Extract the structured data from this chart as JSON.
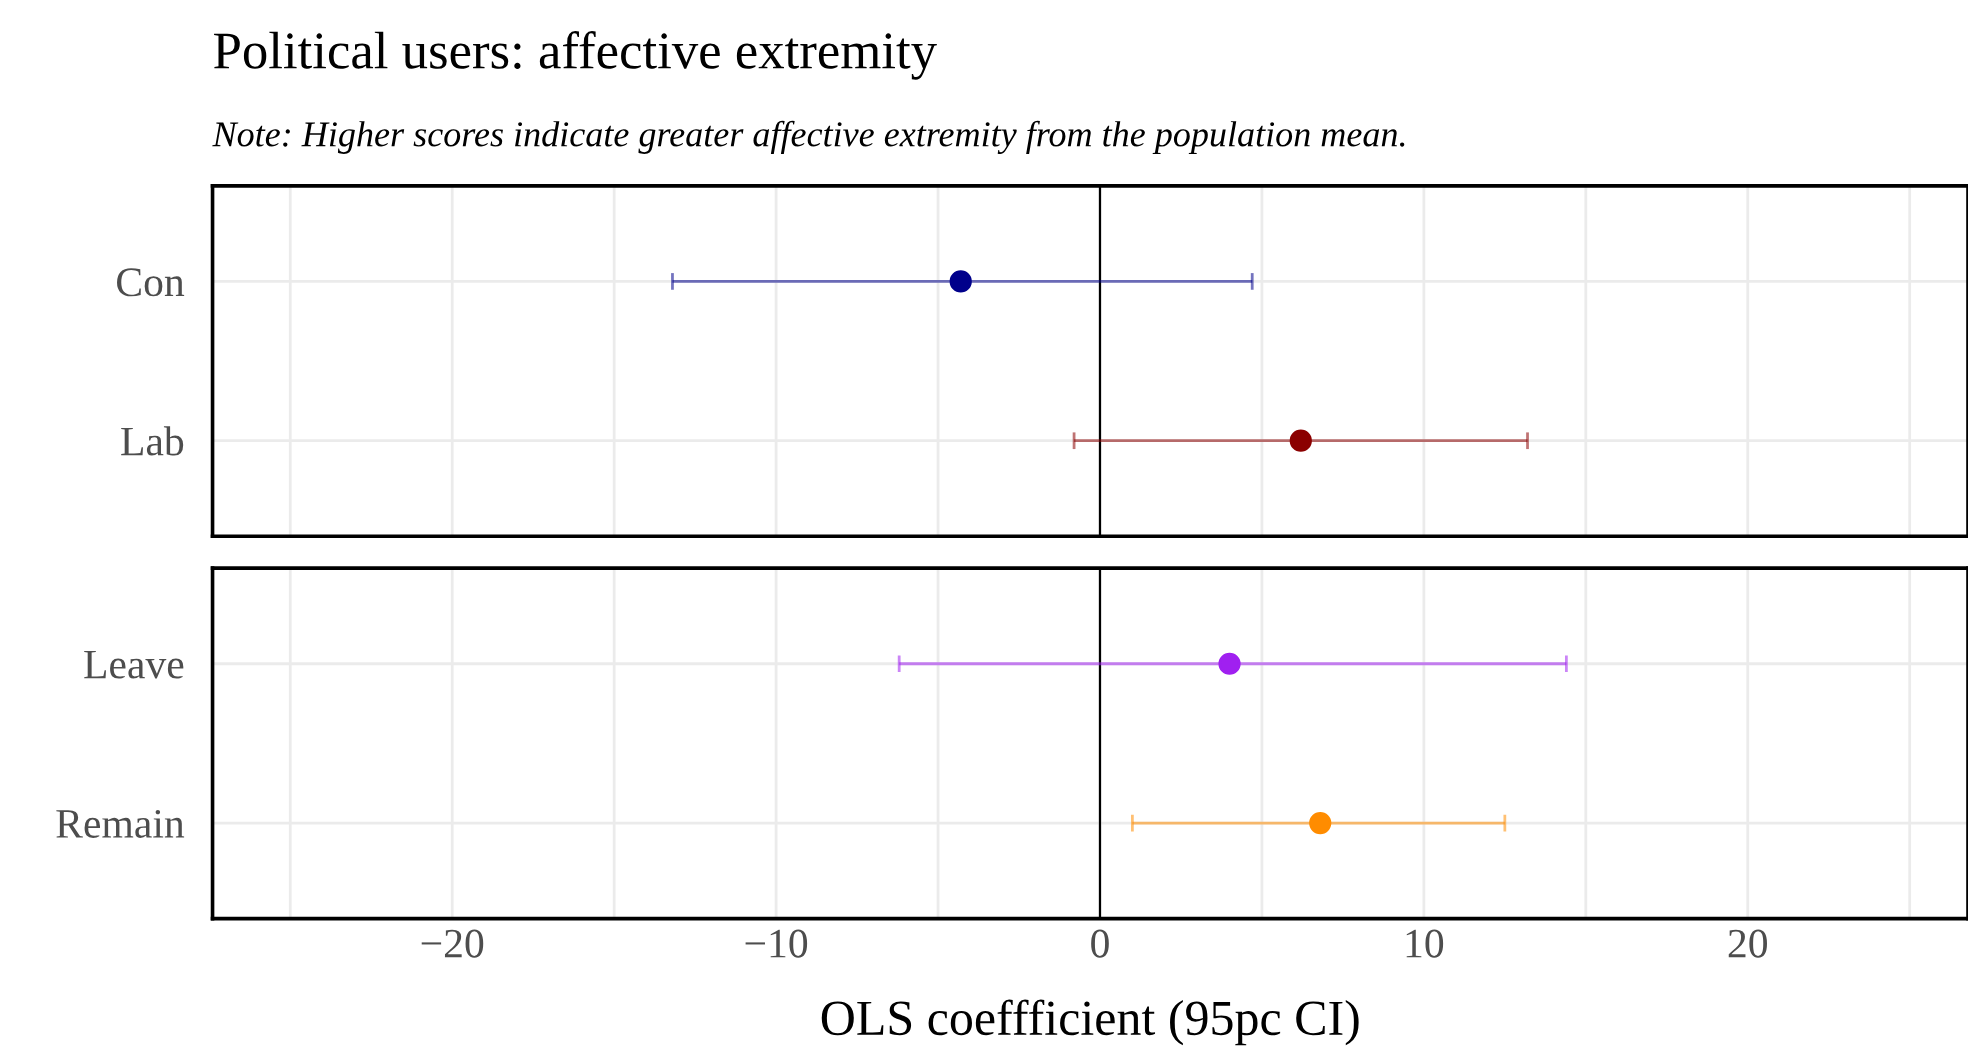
{
  "chart_data": [
    {
      "type": "scatter",
      "orientation": "horizontal",
      "title": "Political users: affective extremity",
      "subtitle": "Note: Higher scores indicate greater affective extremity from the population mean.",
      "categories": [
        "Con",
        "Lab"
      ],
      "values": [
        -4.3,
        6.2
      ],
      "errors": [
        [
          -13.2,
          4.7
        ],
        [
          -0.8,
          13.2
        ]
      ],
      "colors": [
        "#00008b",
        "#8b0000"
      ],
      "xlim": [
        -27.4,
        26.8
      ],
      "xticks": [
        {
          "value": -25,
          "label": null
        },
        -20,
        {
          "value": -15,
          "label": null
        },
        -10,
        {
          "value": -5,
          "label": null
        },
        0,
        {
          "value": 5,
          "label": null
        },
        10,
        {
          "value": 15,
          "label": null
        },
        20,
        {
          "value": 25,
          "label": null
        }
      ],
      "ref_lines": [
        {
          "axis": "x",
          "value": 0,
          "color": "#000000"
        }
      ],
      "grid": true,
      "marker": "circle",
      "tick_labels": "y"
    },
    {
      "type": "scatter",
      "orientation": "horizontal",
      "xlabel": "OLS coeffficient (95pc CI)",
      "categories": [
        "Leave",
        "Remain"
      ],
      "values": [
        4.0,
        6.8
      ],
      "errors": [
        [
          -6.2,
          14.4
        ],
        [
          1.0,
          12.5
        ]
      ],
      "colors": [
        "#a020f0",
        "#ff8c00"
      ],
      "xlim": [
        -27.4,
        26.8
      ],
      "xticks": [
        {
          "value": -25,
          "label": null
        },
        -20,
        {
          "value": -15,
          "label": null
        },
        -10,
        {
          "value": -5,
          "label": null
        },
        0,
        {
          "value": 5,
          "label": null
        },
        10,
        {
          "value": 15,
          "label": null
        },
        20,
        {
          "value": 25,
          "label": null
        }
      ],
      "ref_lines": [
        {
          "axis": "x",
          "value": 0,
          "color": "#000000"
        }
      ],
      "grid": true,
      "marker": "circle"
    }
  ]
}
